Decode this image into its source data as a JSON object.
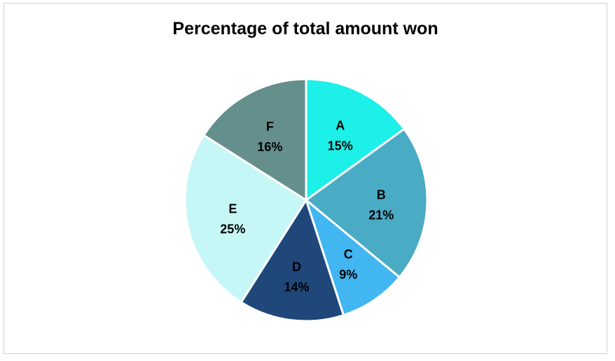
{
  "chart_data": {
    "type": "pie",
    "title": "Percentage of total amount won",
    "categories": [
      "A",
      "B",
      "C",
      "D",
      "E",
      "F"
    ],
    "values": [
      15,
      21,
      9,
      14,
      25,
      16
    ],
    "value_labels": [
      "15%",
      "21%",
      "9%",
      "14%",
      "25%",
      "16%"
    ],
    "colors": [
      "#1cf0e8",
      "#4aabc5",
      "#42b6f0",
      "#1f477a",
      "#c6f7f7",
      "#658f8d"
    ],
    "label_colors": [
      "#000000",
      "#000000",
      "#000000",
      "#000000",
      "#000000",
      "#000000"
    ],
    "start_angle_deg": 0,
    "direction": "clockwise",
    "legend": "none"
  }
}
